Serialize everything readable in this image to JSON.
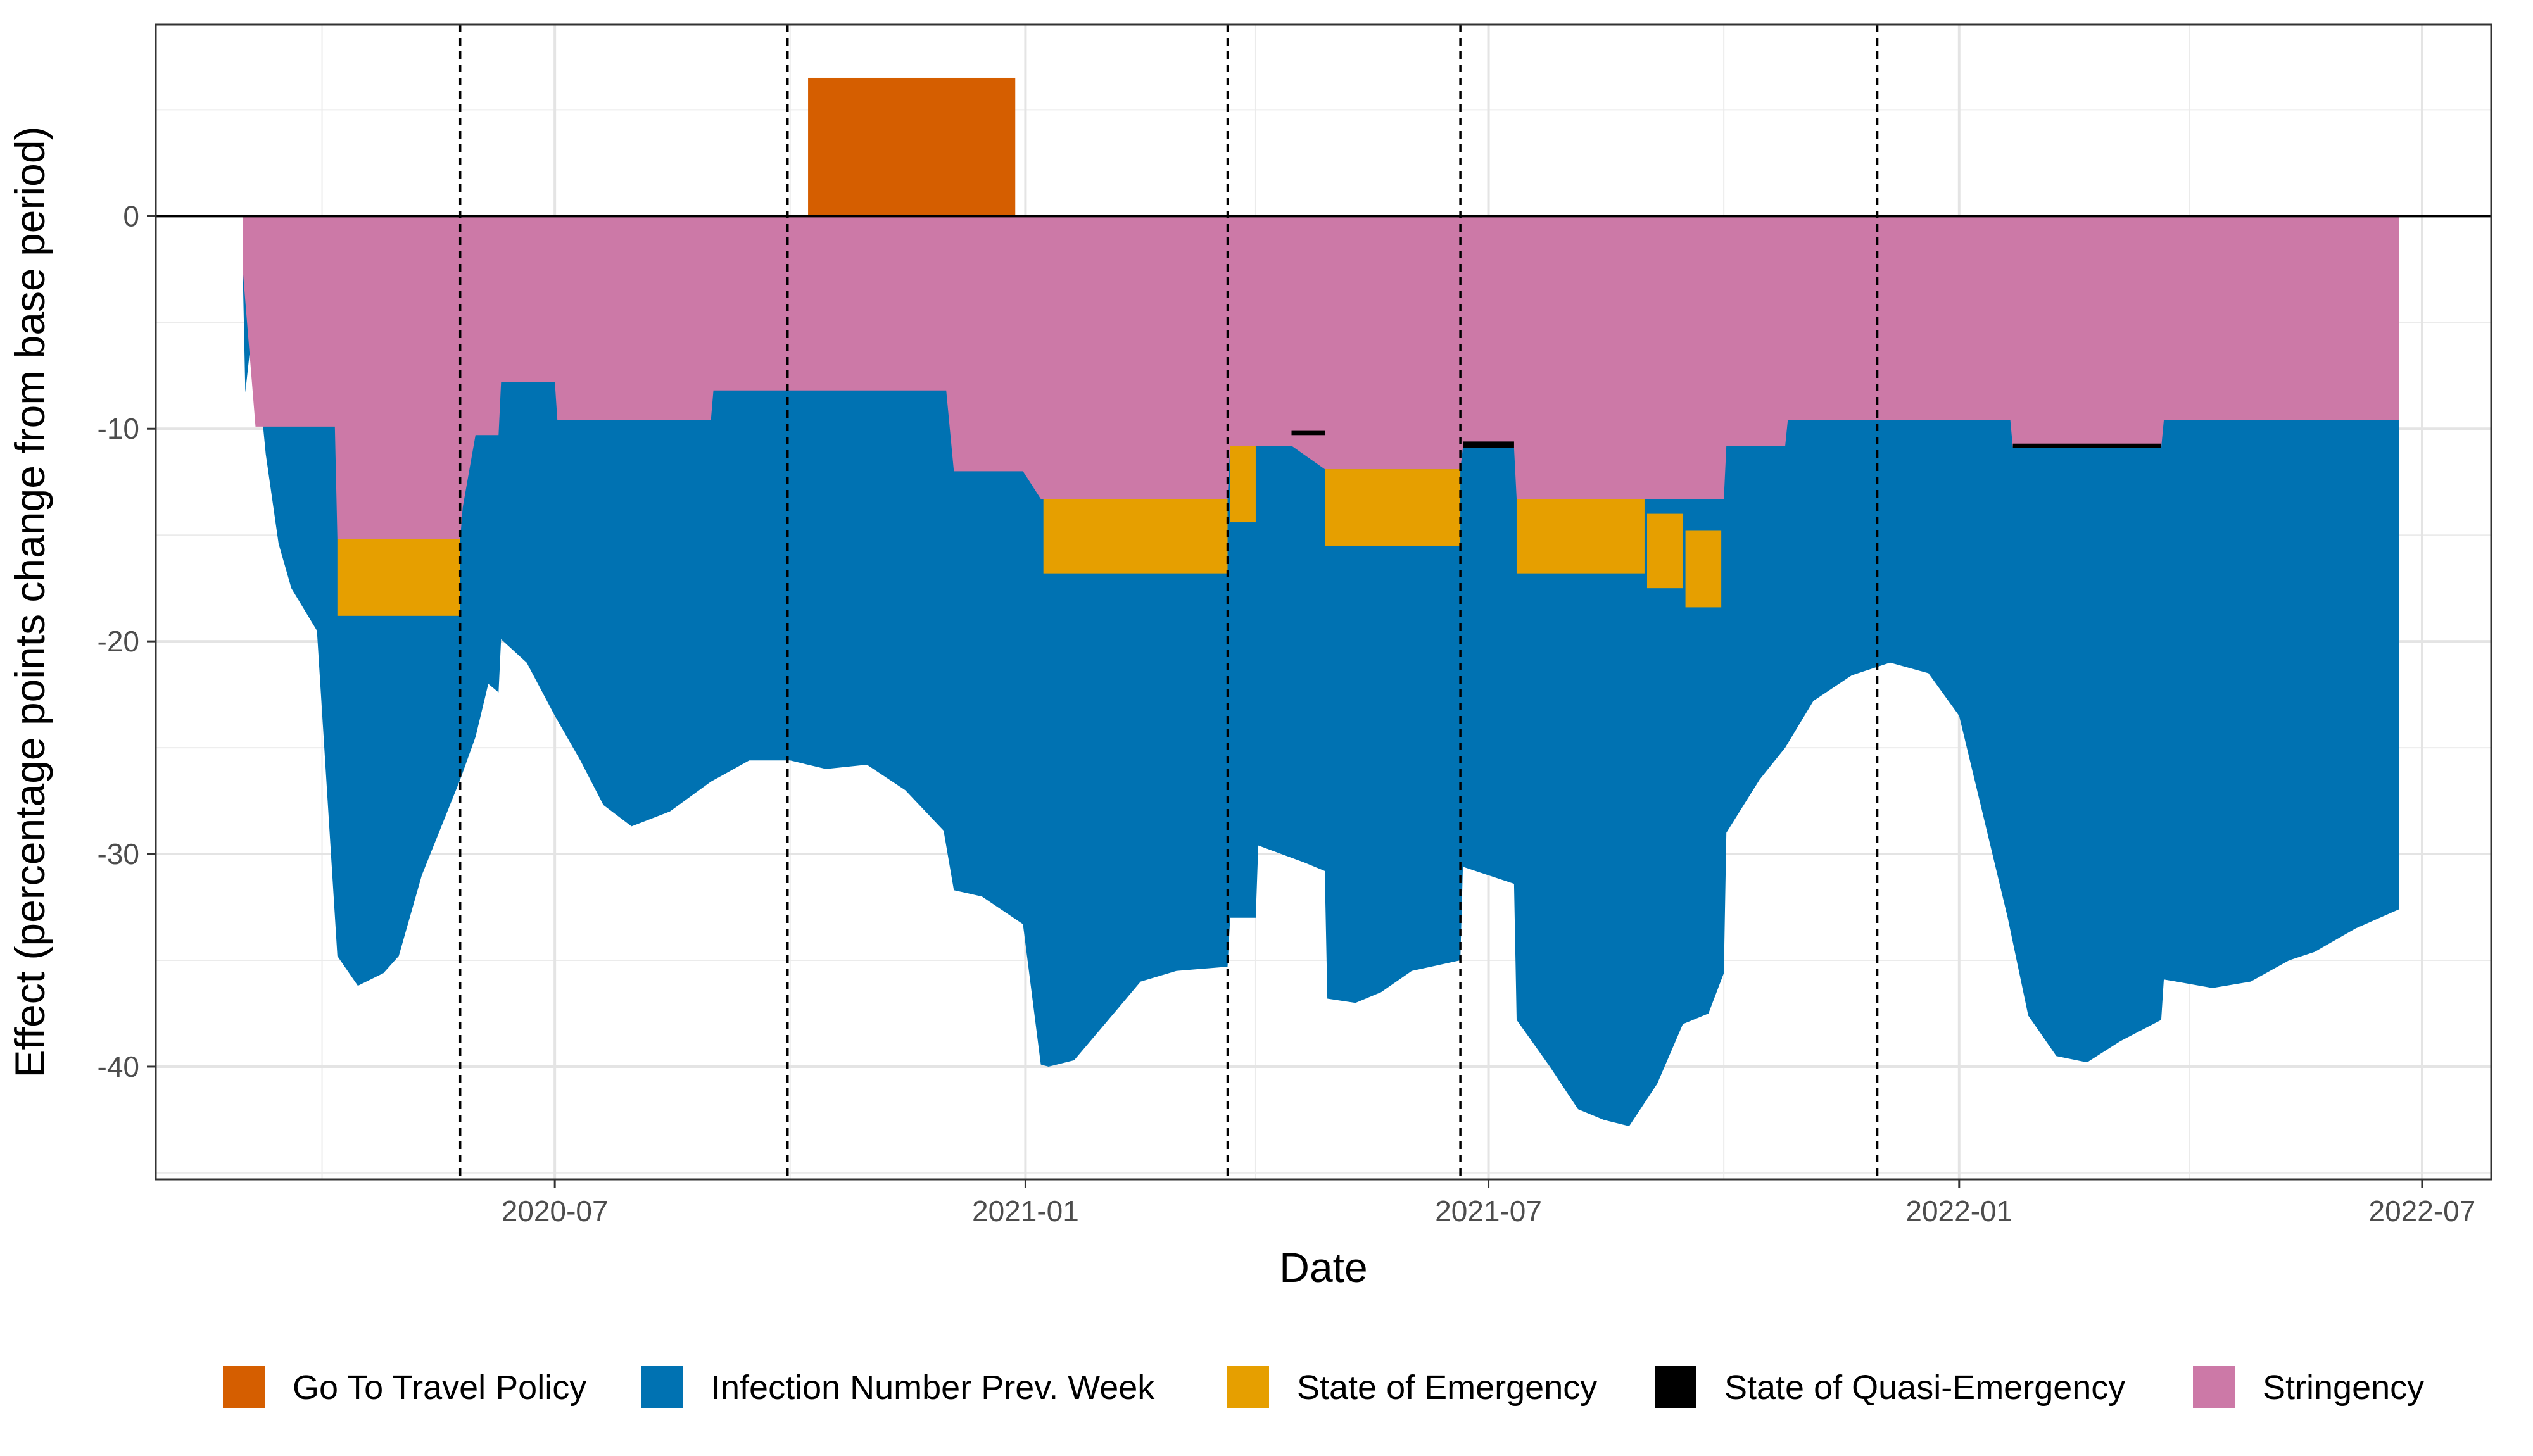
{
  "chart_data": {
    "type": "area",
    "xlabel": "Date",
    "ylabel": "Effect (percentage points change from base period)",
    "x_ticks": [
      "2020-07",
      "2021-01",
      "2021-07",
      "2022-01",
      "2022-07"
    ],
    "y_ticks": [
      0,
      -10,
      -20,
      -30,
      -40
    ],
    "xlim": [
      "2020-01-27",
      "2022-07-28"
    ],
    "ylim": [
      -45.3,
      9.0
    ],
    "grid": true,
    "legend_position": "bottom",
    "event_lines": [
      "2020-05-25",
      "2020-09-30",
      "2021-03-21",
      "2021-06-20",
      "2021-11-30"
    ],
    "colors": {
      "Go To Travel Policy": "#D55E00",
      "Infection Number Prev. Week": "#0072B2",
      "State of Emergency": "#E69F00",
      "State of Quasi-Emergency": "#000000",
      "Stringency": "#CC79A7"
    },
    "legend": [
      "Go To Travel Policy",
      "Infection Number Prev. Week",
      "State of Emergency",
      "State of Quasi-Emergency",
      "Stringency"
    ],
    "series": [
      {
        "name": "Stringency",
        "layer": "below_zero",
        "points": [
          [
            "2020-03-01",
            -2.5
          ],
          [
            "2020-03-06",
            -9.9
          ],
          [
            "2020-04-06",
            -9.9
          ],
          [
            "2020-04-07",
            -15.2
          ],
          [
            "2020-05-25",
            -15.2
          ],
          [
            "2020-05-26",
            -13.7
          ],
          [
            "2020-05-31",
            -10.3
          ],
          [
            "2020-06-09",
            -10.3
          ],
          [
            "2020-06-10",
            -7.8
          ],
          [
            "2020-07-01",
            -7.8
          ],
          [
            "2020-07-02",
            -9.6
          ],
          [
            "2020-08-31",
            -9.6
          ],
          [
            "2020-09-01",
            -8.2
          ],
          [
            "2020-12-01",
            -8.2
          ],
          [
            "2020-12-04",
            -12.0
          ],
          [
            "2020-12-31",
            -12.0
          ],
          [
            "2021-01-07",
            -13.3
          ],
          [
            "2021-03-21",
            -13.3
          ],
          [
            "2021-03-22",
            -10.8
          ],
          [
            "2021-04-15",
            -10.8
          ],
          [
            "2021-04-28",
            -11.9
          ],
          [
            "2021-06-20",
            -11.9
          ],
          [
            "2021-06-21",
            -10.9
          ],
          [
            "2021-07-11",
            -10.9
          ],
          [
            "2021-07-12",
            -13.3
          ],
          [
            "2021-10-01",
            -13.3
          ],
          [
            "2021-10-02",
            -10.8
          ],
          [
            "2021-10-25",
            -10.8
          ],
          [
            "2021-10-26",
            -9.6
          ],
          [
            "2022-01-21",
            -9.6
          ],
          [
            "2022-01-22",
            -10.9
          ],
          [
            "2022-03-21",
            -10.9
          ],
          [
            "2022-03-22",
            -9.6
          ],
          [
            "2022-06-22",
            -9.6
          ]
        ]
      },
      {
        "name": "State of Quasi-Emergency",
        "layer": "band",
        "segments": [
          {
            "start": "2021-04-15",
            "end": "2021-04-28",
            "top": -10.1,
            "bottom": -10.3
          },
          {
            "start": "2021-06-21",
            "end": "2021-07-11",
            "top": -10.6,
            "bottom": -10.9
          },
          {
            "start": "2022-01-22",
            "end": "2022-03-21",
            "top": -10.7,
            "bottom": -10.9
          }
        ]
      },
      {
        "name": "State of Emergency",
        "layer": "band",
        "segments": [
          {
            "start": "2020-04-07",
            "end": "2020-05-25",
            "top": -15.2,
            "bottom": -18.8
          },
          {
            "start": "2021-01-08",
            "end": "2021-03-21",
            "top": -13.3,
            "bottom": -16.8
          },
          {
            "start": "2021-03-22",
            "end": "2021-04-01",
            "top": -10.8,
            "bottom": -14.4
          },
          {
            "start": "2021-04-28",
            "end": "2021-06-20",
            "top": -11.9,
            "bottom": -15.5
          },
          {
            "start": "2021-07-12",
            "end": "2021-08-31",
            "top": -13.3,
            "bottom": -16.8
          },
          {
            "start": "2021-09-01",
            "end": "2021-09-15",
            "top": -14.0,
            "bottom": -17.5
          },
          {
            "start": "2021-09-16",
            "end": "2021-09-30",
            "top": -14.8,
            "bottom": -18.4
          }
        ]
      },
      {
        "name": "Infection Number Prev. Week",
        "layer": "lower_envelope",
        "points": [
          [
            "2020-03-01",
            -2.5
          ],
          [
            "2020-03-02",
            -8.3
          ],
          [
            "2020-03-05",
            -5.0
          ],
          [
            "2020-03-10",
            -11.2
          ],
          [
            "2020-03-15",
            -15.4
          ],
          [
            "2020-03-20",
            -17.5
          ],
          [
            "2020-03-30",
            -19.5
          ],
          [
            "2020-04-07",
            -34.8
          ],
          [
            "2020-04-15",
            -36.2
          ],
          [
            "2020-04-25",
            -35.6
          ],
          [
            "2020-05-01",
            -34.8
          ],
          [
            "2020-05-10",
            -31.0
          ],
          [
            "2020-05-25",
            -26.5
          ],
          [
            "2020-05-31",
            -24.5
          ],
          [
            "2020-06-05",
            -22.0
          ],
          [
            "2020-06-09",
            -22.4
          ],
          [
            "2020-06-10",
            -19.9
          ],
          [
            "2020-06-20",
            -21.0
          ],
          [
            "2020-07-01",
            -23.5
          ],
          [
            "2020-07-11",
            -25.6
          ],
          [
            "2020-07-20",
            -27.7
          ],
          [
            "2020-07-31",
            -28.7
          ],
          [
            "2020-08-15",
            -28.0
          ],
          [
            "2020-08-31",
            -26.6
          ],
          [
            "2020-09-15",
            -25.6
          ],
          [
            "2020-10-01",
            -25.6
          ],
          [
            "2020-10-15",
            -26.0
          ],
          [
            "2020-10-31",
            -25.8
          ],
          [
            "2020-11-15",
            -27.0
          ],
          [
            "2020-11-30",
            -28.9
          ],
          [
            "2020-12-04",
            -31.7
          ],
          [
            "2020-12-15",
            -32.0
          ],
          [
            "2020-12-31",
            -33.3
          ],
          [
            "2021-01-07",
            -39.9
          ],
          [
            "2021-01-10",
            -40.0
          ],
          [
            "2021-01-20",
            -39.7
          ],
          [
            "2021-02-01",
            -38.0
          ],
          [
            "2021-02-15",
            -36.0
          ],
          [
            "2021-03-01",
            -35.5
          ],
          [
            "2021-03-21",
            -35.3
          ],
          [
            "2021-03-22",
            -33.0
          ],
          [
            "2021-04-01",
            -33.0
          ],
          [
            "2021-04-02",
            -29.6
          ],
          [
            "2021-04-20",
            -30.4
          ],
          [
            "2021-04-28",
            -30.8
          ],
          [
            "2021-04-29",
            -36.8
          ],
          [
            "2021-05-10",
            -37.0
          ],
          [
            "2021-05-20",
            -36.5
          ],
          [
            "2021-06-01",
            -35.5
          ],
          [
            "2021-06-20",
            -35.0
          ],
          [
            "2021-06-21",
            -30.6
          ],
          [
            "2021-07-11",
            -31.4
          ],
          [
            "2021-07-12",
            -37.8
          ],
          [
            "2021-07-25",
            -40.0
          ],
          [
            "2021-08-05",
            -42.0
          ],
          [
            "2021-08-15",
            -42.5
          ],
          [
            "2021-08-25",
            -42.8
          ],
          [
            "2021-09-05",
            -40.8
          ],
          [
            "2021-09-15",
            -38.0
          ],
          [
            "2021-09-25",
            -37.5
          ],
          [
            "2021-10-01",
            -35.6
          ],
          [
            "2021-10-02",
            -29.0
          ],
          [
            "2021-10-15",
            -26.5
          ],
          [
            "2021-10-25",
            -25.0
          ],
          [
            "2021-11-05",
            -22.8
          ],
          [
            "2021-11-20",
            -21.6
          ],
          [
            "2021-12-05",
            -21.0
          ],
          [
            "2021-12-20",
            -21.5
          ],
          [
            "2022-01-01",
            -23.5
          ],
          [
            "2022-01-10",
            -28.0
          ],
          [
            "2022-01-20",
            -33.0
          ],
          [
            "2022-01-28",
            -37.6
          ],
          [
            "2022-02-08",
            -39.5
          ],
          [
            "2022-02-20",
            -39.8
          ],
          [
            "2022-03-05",
            -38.8
          ],
          [
            "2022-03-21",
            -37.8
          ],
          [
            "2022-03-22",
            -35.9
          ],
          [
            "2022-04-10",
            -36.3
          ],
          [
            "2022-04-25",
            -36.0
          ],
          [
            "2022-05-10",
            -35.0
          ],
          [
            "2022-05-20",
            -34.6
          ],
          [
            "2022-06-05",
            -33.5
          ],
          [
            "2022-06-22",
            -32.6
          ]
        ]
      },
      {
        "name": "Go To Travel Policy",
        "layer": "above_zero",
        "segments": [
          {
            "start": "2020-10-08",
            "end": "2020-12-28",
            "value": 6.5
          }
        ]
      }
    ]
  }
}
